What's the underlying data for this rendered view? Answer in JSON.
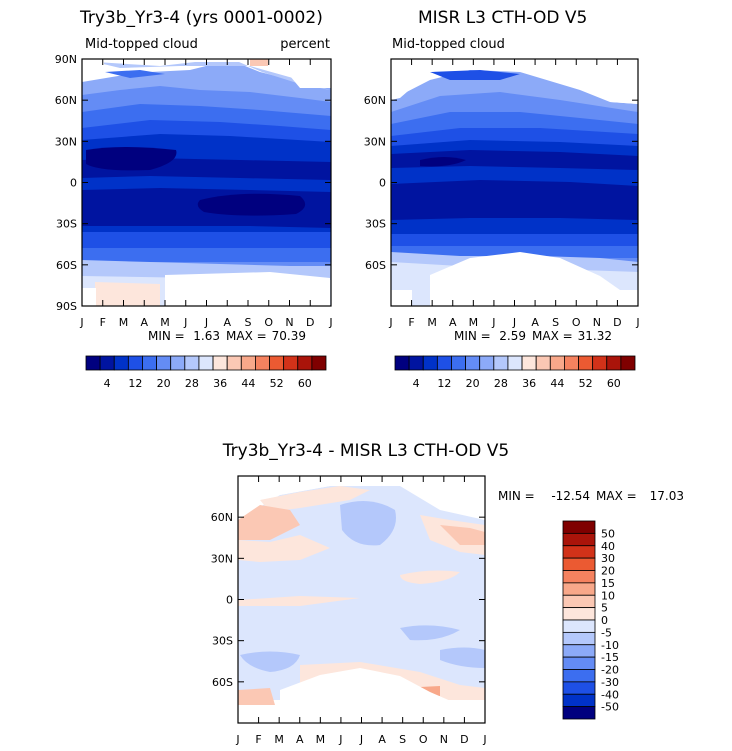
{
  "chart_data": [
    {
      "type": "heatmap",
      "id": "model",
      "title": "Try3b_Yr3-4 (yrs 0001-0002)",
      "subtitle_left": "Mid-topped cloud",
      "subtitle_right": "percent",
      "x_ticks": [
        "J",
        "F",
        "M",
        "A",
        "M",
        "J",
        "J",
        "A",
        "S",
        "O",
        "N",
        "D",
        "J"
      ],
      "y_ticks": [
        "90N",
        "60N",
        "30N",
        "0",
        "30S",
        "60S",
        "90S"
      ],
      "ylim": [
        -90,
        90
      ],
      "stats": {
        "min_label": "MIN =",
        "min": "1.63",
        "max_label": "MAX =",
        "max": "70.39"
      },
      "colorbar": {
        "labels": [
          "4",
          "12",
          "20",
          "28",
          "36",
          "44",
          "52",
          "60"
        ],
        "colors": [
          "#00007f",
          "#0014a0",
          "#0032c8",
          "#1e50e6",
          "#3c6ef0",
          "#648cf5",
          "#8caaf8",
          "#b4c8fb",
          "#dce6fd",
          "#fde6dc",
          "#fbc8b4",
          "#f8a88a",
          "#f5825f",
          "#eb5a32",
          "#d23219",
          "#aa140a",
          "#7f0000"
        ]
      }
    },
    {
      "type": "heatmap",
      "id": "obs",
      "title": "MISR L3 CTH-OD V5",
      "subtitle_left": "Mid-topped cloud",
      "x_ticks": [
        "J",
        "F",
        "M",
        "A",
        "M",
        "J",
        "J",
        "A",
        "S",
        "O",
        "N",
        "D",
        "J"
      ],
      "y_ticks": [
        "60N",
        "30N",
        "0",
        "30S",
        "60S"
      ],
      "ylim": [
        -90,
        90
      ],
      "stats": {
        "min_label": "MIN =",
        "min": "2.59",
        "max_label": "MAX =",
        "max": "31.32"
      },
      "colorbar": {
        "labels": [
          "4",
          "12",
          "20",
          "28",
          "36",
          "44",
          "52",
          "60"
        ],
        "colors": [
          "#00007f",
          "#0014a0",
          "#0032c8",
          "#1e50e6",
          "#3c6ef0",
          "#648cf5",
          "#8caaf8",
          "#b4c8fb",
          "#dce6fd",
          "#fde6dc",
          "#fbc8b4",
          "#f8a88a",
          "#f5825f",
          "#eb5a32",
          "#d23219",
          "#aa140a",
          "#7f0000"
        ]
      }
    },
    {
      "type": "heatmap",
      "id": "diff",
      "title": "Try3b_Yr3-4 - MISR L3 CTH-OD V5",
      "x_ticks": [
        "J",
        "F",
        "M",
        "A",
        "M",
        "J",
        "J",
        "A",
        "S",
        "O",
        "N",
        "D",
        "J"
      ],
      "y_ticks": [
        "60N",
        "30N",
        "0",
        "30S",
        "60S"
      ],
      "ylim": [
        -90,
        90
      ],
      "stats": {
        "min_label": "MIN =",
        "min": "-12.54",
        "max_label": "MAX =",
        "max": "17.03"
      },
      "colorbar": {
        "labels": [
          "50",
          "40",
          "30",
          "20",
          "15",
          "10",
          "5",
          "0",
          "-5",
          "-10",
          "-15",
          "-20",
          "-30",
          "-40",
          "-50"
        ],
        "colors": [
          "#7f0000",
          "#aa140a",
          "#d23219",
          "#eb5a32",
          "#f5825f",
          "#f8a88a",
          "#fbc8b4",
          "#fde6dc",
          "#dce6fd",
          "#b4c8fb",
          "#8caaf8",
          "#648cf5",
          "#3c6ef0",
          "#1e50e6",
          "#0032c8",
          "#00007f"
        ]
      }
    }
  ]
}
